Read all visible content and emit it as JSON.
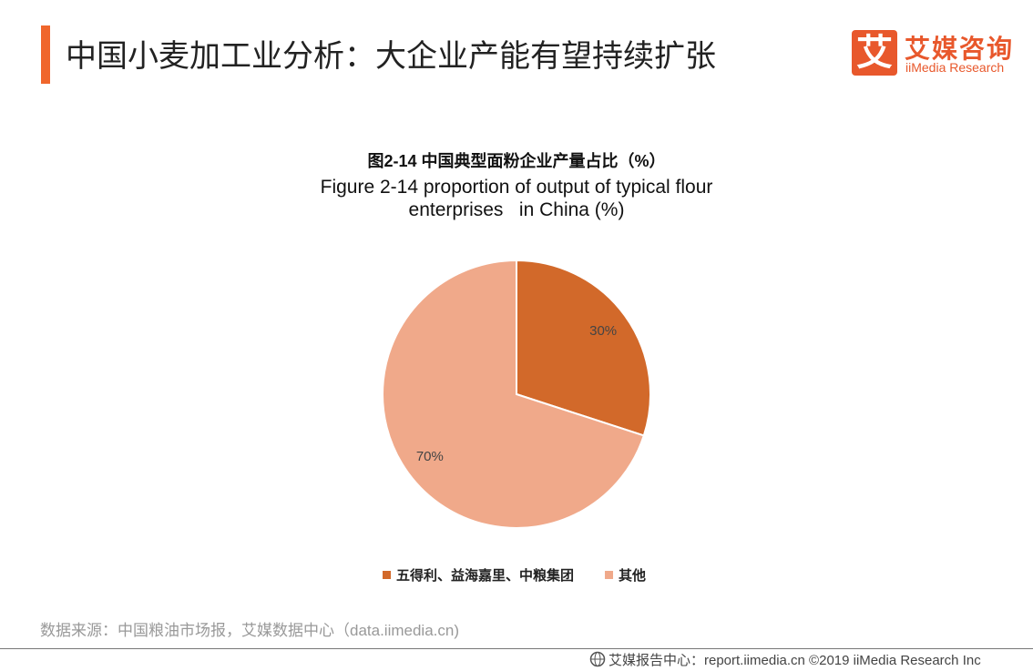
{
  "header": {
    "title": "中国小麦加工业分析：大企业产能有望持续扩张",
    "logo": {
      "mark": "艾",
      "name": "艾媒咨询",
      "name_en": "iiMedia Research"
    }
  },
  "chart_data": {
    "type": "pie",
    "title": "图2-14 中国典型面粉企业产量占比（%）",
    "subtitle": "Figure 2-14 proportion of output of typical flour enterprises   in China (%)",
    "categories": [
      "五得利、益海嘉里、中粮集团",
      "其他"
    ],
    "values": [
      30,
      70
    ],
    "value_labels": [
      "30%",
      "70%"
    ],
    "colors": [
      "#d2692a",
      "#f0a98a"
    ],
    "legend": "bottom"
  },
  "source": "数据来源：中国粮油市场报，艾媒数据中心（data.iimedia.cn)",
  "footer": "艾媒报告中心：report.iimedia.cn  ©2019  iiMedia Research  Inc"
}
